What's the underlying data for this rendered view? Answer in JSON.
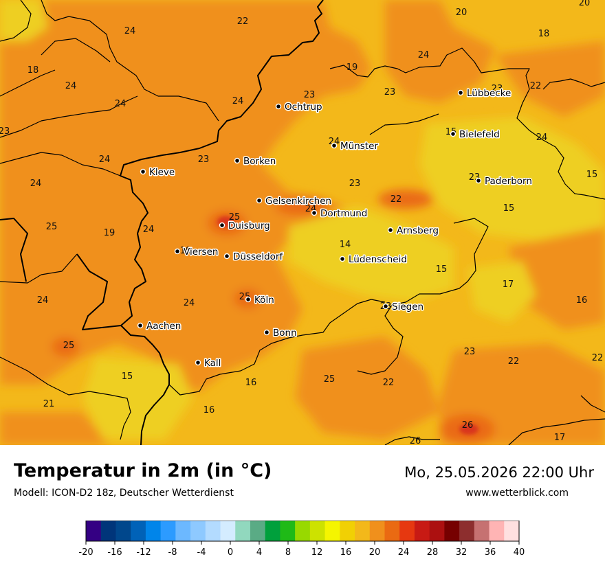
{
  "title": "Temperatur in 2m (in °C)",
  "model": "Modell: ICON-D2 18z, Deutscher Wetterdienst",
  "datetime": "Mo, 25.05.2026 22:00 Uhr",
  "website": "www.wetterblick.com",
  "colors": {
    "base": "#f3b81a",
    "warm": "#f0901c",
    "warmer": "#ea6a12",
    "hot": "#d9341a",
    "cool": "#eecf20"
  },
  "cities": [
    {
      "name": "Ochtrup"
    },
    {
      "name": "Lübbecke"
    },
    {
      "name": "Bielefeld"
    },
    {
      "name": "Münster"
    },
    {
      "name": "Kleve"
    },
    {
      "name": "Borken"
    },
    {
      "name": "Paderborn"
    },
    {
      "name": "Gelsenkirchen"
    },
    {
      "name": "Dortmund"
    },
    {
      "name": "Duisburg"
    },
    {
      "name": "Arnsberg"
    },
    {
      "name": "Viersen"
    },
    {
      "name": "Düsseldorf"
    },
    {
      "name": "Lüdenscheid"
    },
    {
      "name": "Köln"
    },
    {
      "name": "Siegen"
    },
    {
      "name": "Aachen"
    },
    {
      "name": "Bonn"
    },
    {
      "name": "Kall"
    }
  ],
  "temperatures": [
    "20",
    "22",
    "20",
    "18",
    "24",
    "18",
    "24",
    "24",
    "23",
    "24",
    "19",
    "23",
    "23",
    "22",
    "24",
    "23",
    "24",
    "15",
    "24",
    "23",
    "24",
    "23",
    "15",
    "24",
    "23",
    "25",
    "19",
    "24",
    "25",
    "15",
    "22",
    "14",
    "19",
    "24",
    "15",
    "17",
    "24",
    "25",
    "23",
    "24",
    "16",
    "25",
    "23",
    "22",
    "22",
    "15",
    "16",
    "25",
    "22",
    "21",
    "16",
    "26",
    "26",
    "17"
  ],
  "colorbar": {
    "colors": [
      "#340083",
      "#00357a",
      "#00478c",
      "#0062b8",
      "#0085ea",
      "#2c9bff",
      "#6cb8ff",
      "#8ec9ff",
      "#b3dbff",
      "#d4ecff",
      "#91d8be",
      "#5aab85",
      "#00a03c",
      "#1fba17",
      "#98d900",
      "#cde200",
      "#f5f500",
      "#f1d004",
      "#f3b81a",
      "#f0901c",
      "#ea6a12",
      "#e63810",
      "#c81a14",
      "#ac1010",
      "#760000",
      "#8d2e2e",
      "#c67171",
      "#ffb4b4",
      "#ffe0e0"
    ],
    "tick_labels": [
      "-20",
      "-16",
      "-12",
      "-8",
      "-4",
      "0",
      "4",
      "8",
      "12",
      "16",
      "20",
      "24",
      "28",
      "32",
      "36",
      "40"
    ]
  }
}
